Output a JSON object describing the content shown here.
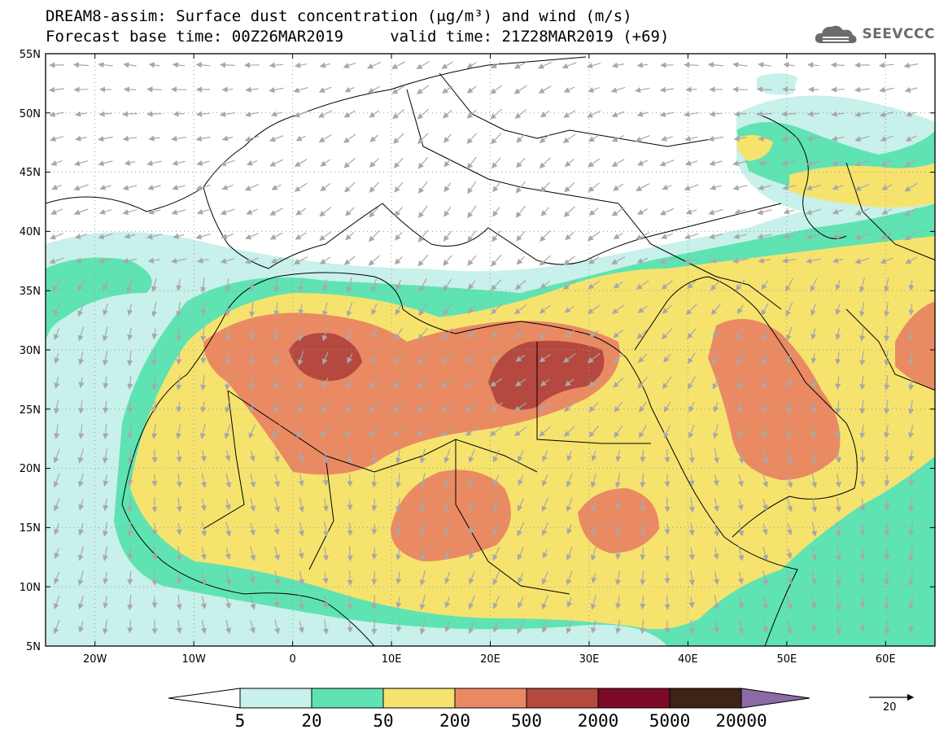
{
  "header": {
    "title_line1": "DREAM8-assim: Surface dust concentration (μg/m³) and wind (m/s)",
    "title_line2": "Forecast base time: 00Z26MAR2019     valid time: 21Z28MAR2019 (+69)",
    "logo_text": "SEEVCCC"
  },
  "map": {
    "lon_range": [
      -25,
      65
    ],
    "lat_range": [
      5,
      55
    ],
    "lat_ticks": [
      "55N",
      "50N",
      "45N",
      "40N",
      "35N",
      "30N",
      "25N",
      "20N",
      "15N",
      "10N",
      "5N"
    ],
    "lon_ticks": [
      "20W",
      "10W",
      "0",
      "10E",
      "20E",
      "30E",
      "40E",
      "50E",
      "60E"
    ],
    "wind_arrow_color": "#a8a8a8"
  },
  "colorbar": {
    "labels": [
      "5",
      "20",
      "50",
      "200",
      "500",
      "2000",
      "5000",
      "20000"
    ],
    "colors": [
      "#c7f1ea",
      "#5fe3b3",
      "#f6e36e",
      "#ea8a63",
      "#b5493f",
      "#7d0b28",
      "#3c2416",
      "#8c6aa6"
    ]
  },
  "wind_reference": {
    "value": "20"
  }
}
